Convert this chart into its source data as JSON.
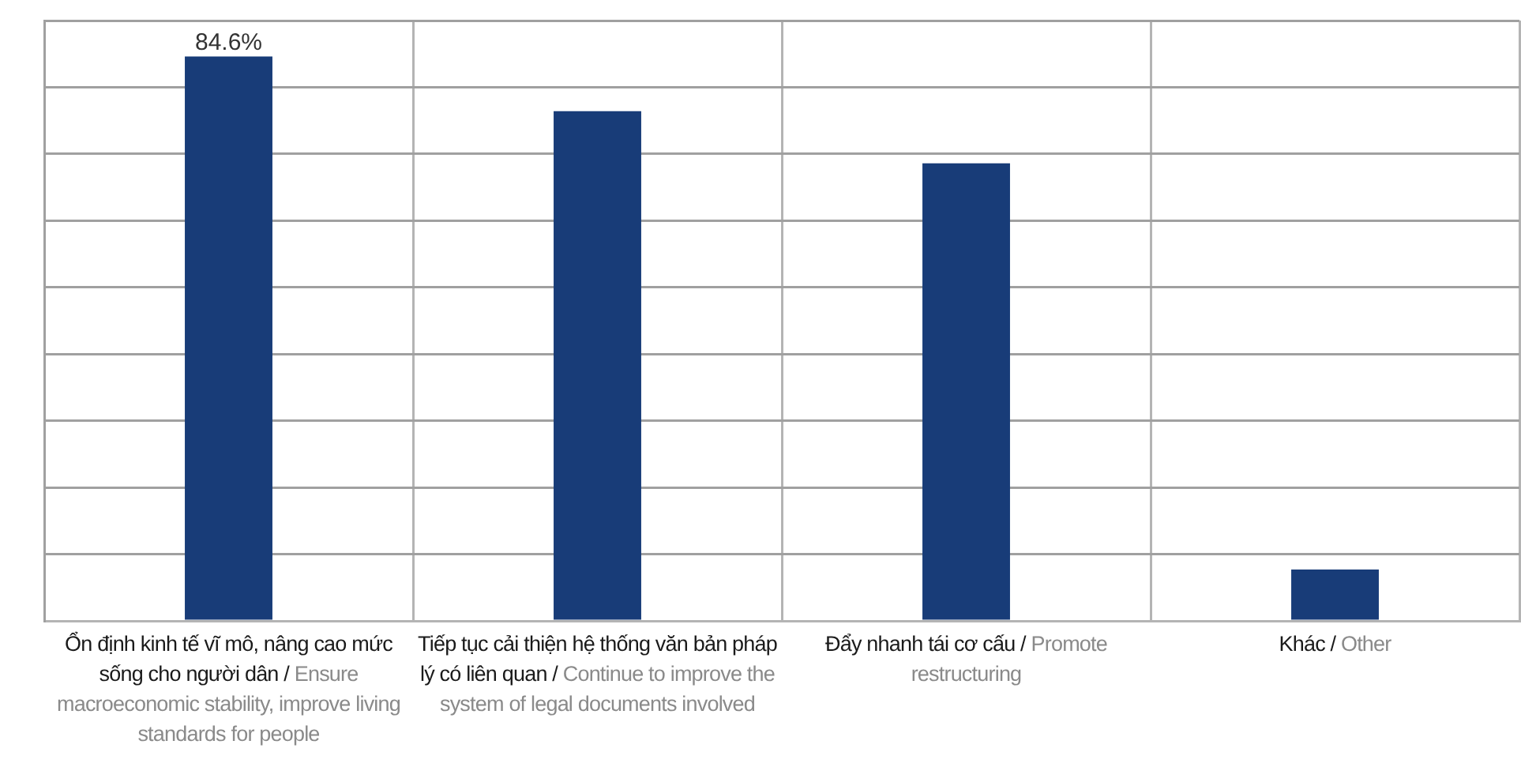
{
  "chart_data": {
    "type": "bar",
    "categories": [
      "Ổn định kinh tế vĩ mô, nâng cao mức sống cho người dân / Ensure macroeconomic stability, improve living standards for people",
      "Tiếp tục cải thiện hệ thống văn bản pháp lý có liên quan / Continue to improve the system of legal documents involved",
      "Đẩy nhanh tái cơ cấu / Promote restructuring",
      "Khác / Other"
    ],
    "values": [
      84.6,
      76.4,
      68.6,
      7.7
    ],
    "value_labels": [
      "84.6%",
      null,
      null,
      null
    ],
    "color": "#183c78",
    "ylim": [
      0,
      90
    ],
    "yticks": [
      {
        "value": 0,
        "label": null
      },
      {
        "value": 10,
        "label": null
      },
      {
        "value": 20,
        "label": null
      },
      {
        "value": 30,
        "label": null
      },
      {
        "value": 40,
        "label": null
      },
      {
        "value": 50,
        "label": null
      },
      {
        "value": 60,
        "label": null
      },
      {
        "value": 70,
        "label": null
      },
      {
        "value": 80,
        "label": null
      },
      {
        "value": 90,
        "label": null
      }
    ],
    "tick_labels": "x",
    "grid": true,
    "legend": false
  }
}
